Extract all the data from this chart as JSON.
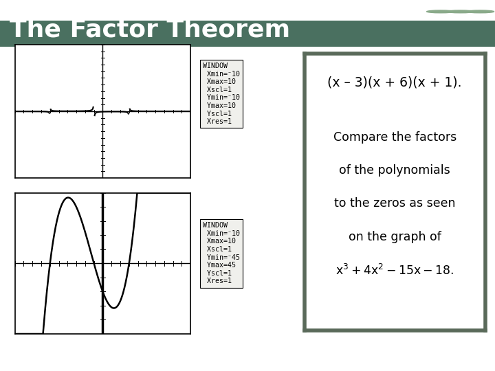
{
  "title": "The Factor Theorem",
  "title_bg_top": "#5a8a6a",
  "title_bg_bottom": "#4a7060",
  "title_color": "#ffffff",
  "title_fontsize": 26,
  "bg_color": "#e8e8e0",
  "window1_lines": [
    "WINDOW",
    " Xmin=-10",
    " Xmax=10",
    " Xscl=1",
    " Ymin=-10",
    " Ymax=10",
    " Yscl=1",
    " Xres=1"
  ],
  "window2_lines": [
    "WINDOW",
    " Xmin=-10",
    " Xmax=10",
    " Xscl=1",
    " Ymin=-45",
    " Ymax=45",
    " Yscl=1",
    " Xres=1"
  ],
  "text_line1": "(x – 3)(x + 6)(x + 1).",
  "text_line2": "Compare the factors",
  "text_line3": "of the polynomials",
  "text_line4": "to the zeros as seen",
  "text_line5": "on the graph of",
  "box_border_color": "#5a6a5a",
  "graph_bg": "#ffffff",
  "graph_border": "#000000",
  "window_neg": "⁻"
}
